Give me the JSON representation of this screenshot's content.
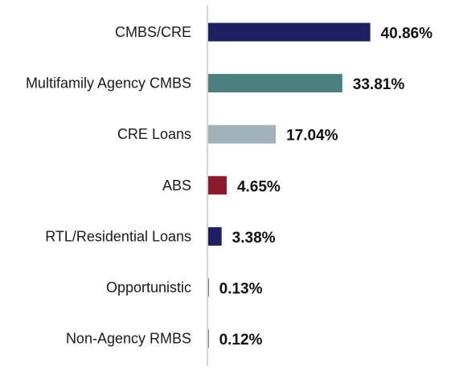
{
  "chart_data": {
    "type": "bar",
    "orientation": "horizontal",
    "title": "",
    "xlabel": "",
    "ylabel": "",
    "grid": false,
    "legend": "none",
    "value_suffix": "%",
    "xlim": [
      0,
      45
    ],
    "categories": [
      "CMBS/CRE",
      "Multifamily Agency CMBS",
      "CRE Loans",
      "ABS",
      "RTL/Residential Loans",
      "Opportunistic",
      "Non-Agency RMBS"
    ],
    "values": [
      40.86,
      33.81,
      17.04,
      4.65,
      3.38,
      0.13,
      0.12
    ],
    "value_labels": [
      "40.86%",
      "33.81%",
      "17.04%",
      "4.65%",
      "3.38%",
      "0.13%",
      "0.12%"
    ],
    "colors": [
      "#1e2062",
      "#4b7f80",
      "#a0b1ba",
      "#8c1a2c",
      "#1e2062",
      "#1e2062",
      "#1e2062"
    ]
  },
  "style": {
    "axis_color": "#c8c8c8",
    "category_label_color": "#1a1a1a",
    "value_label_color": "#111111"
  }
}
